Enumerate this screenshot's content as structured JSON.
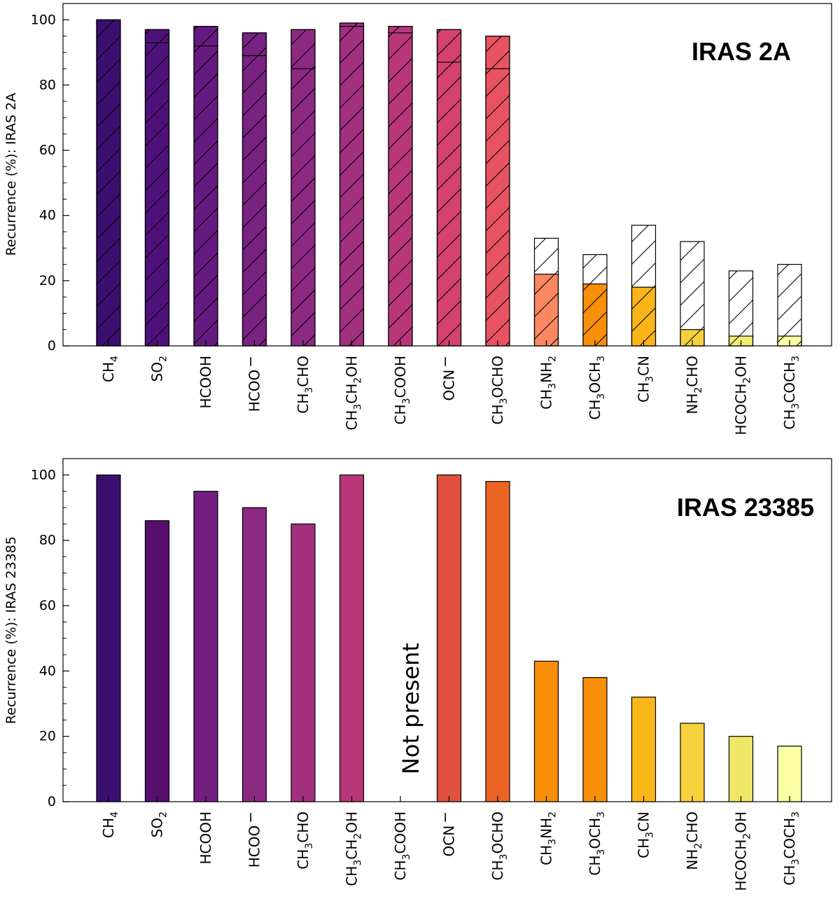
{
  "chart_data": [
    {
      "type": "bar",
      "title": "IRAS 2A",
      "ylabel": "Recurrence (%): IRAS 2A",
      "ylim": [
        0,
        105
      ],
      "yticks": [
        0,
        20,
        40,
        60,
        80,
        100
      ],
      "categories": [
        "CH4",
        "SO2",
        "HCOOH",
        "HCOO−",
        "CH3CHO",
        "CH3CH2OH",
        "CH3COOH",
        "OCN−",
        "CH3OCHO",
        "CH3NH2",
        "CH3OCH3",
        "CH3CN",
        "NH2CHO",
        "HCOCH2OH",
        "CH3COCH3"
      ],
      "series": [
        {
          "name": "recurrence (filled)",
          "values": [
            100,
            97,
            98,
            96,
            97,
            99,
            98,
            97,
            95,
            22,
            19,
            18,
            5,
            3,
            3
          ]
        },
        {
          "name": "inner divider",
          "values": [
            null,
            93,
            92,
            89,
            85,
            98,
            96,
            87,
            85,
            null,
            null,
            null,
            null,
            null,
            null
          ]
        },
        {
          "name": "hatched total",
          "values": [
            100,
            97,
            98,
            96,
            97,
            99,
            98,
            97,
            95,
            33,
            28,
            37,
            32,
            23,
            25
          ]
        }
      ],
      "colors": [
        "#3b0f70",
        "#4f127b",
        "#641a80",
        "#782281",
        "#8c2981",
        "#a1307e",
        "#b73779",
        "#d3436e",
        "#e85362",
        "#fb8861",
        "#f98e09",
        "#fcb519",
        "#f7d13d",
        "#f1ed71",
        "#fcffa4"
      ],
      "grid": false
    },
    {
      "type": "bar",
      "title": "IRAS 23385",
      "ylabel": "Recurrence (%): IRAS 23385",
      "ylim": [
        0,
        105
      ],
      "yticks": [
        0,
        20,
        40,
        60,
        80,
        100
      ],
      "categories": [
        "CH4",
        "SO2",
        "HCOOH",
        "HCOO−",
        "CH3CHO",
        "CH3CH2OH",
        "CH3COOH",
        "OCN−",
        "CH3OCHO",
        "CH3NH2",
        "CH3OCH3",
        "CH3CN",
        "NH2CHO",
        "HCOCH2OH",
        "CH3COCH3"
      ],
      "series": [
        {
          "name": "recurrence",
          "values": [
            100,
            86,
            95,
            90,
            85,
            100,
            null,
            100,
            98,
            43,
            38,
            32,
            24,
            20,
            17
          ]
        }
      ],
      "colors": [
        "#3b0f70",
        "#57106e",
        "#721f81",
        "#8c2981",
        "#a3307e",
        "#b73779",
        "#cb4279",
        "#e0503e",
        "#ec6424",
        "#f98e09",
        "#f98e09",
        "#fbb61a",
        "#f7d13d",
        "#f0e768",
        "#fcffa4"
      ],
      "annotation": "Not present",
      "grid": false
    }
  ]
}
